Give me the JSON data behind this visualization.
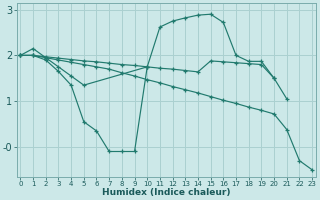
{
  "line_color": "#217a6e",
  "bg_color": "#cce8e8",
  "grid_color": "#aad0d0",
  "xlabel": "Humidex (Indice chaleur)",
  "xlim": [
    -0.3,
    23.3
  ],
  "ylim": [
    -0.65,
    3.15
  ],
  "yticks": [
    0.0,
    1.0,
    2.0,
    3.0
  ],
  "ytick_labels": [
    "-0",
    "1",
    "2",
    "3"
  ],
  "xticks": [
    0,
    1,
    2,
    3,
    4,
    5,
    6,
    7,
    8,
    9,
    10,
    11,
    12,
    13,
    14,
    15,
    16,
    17,
    18,
    19,
    20,
    21,
    22,
    23
  ],
  "lines": [
    {
      "x": [
        0,
        1,
        2,
        3,
        4,
        5,
        10,
        11,
        12,
        13,
        14,
        15,
        16,
        17,
        18,
        19,
        20,
        21
      ],
      "y": [
        2.0,
        2.15,
        1.95,
        1.75,
        1.55,
        1.35,
        1.75,
        2.62,
        2.75,
        2.82,
        2.88,
        2.9,
        2.72,
        2.0,
        1.87,
        1.87,
        1.5,
        1.05
      ]
    },
    {
      "x": [
        0,
        1,
        2,
        3,
        4,
        5,
        6,
        7,
        8,
        9,
        10
      ],
      "y": [
        2.0,
        2.0,
        1.9,
        1.65,
        1.35,
        0.55,
        0.35,
        -0.1,
        -0.1,
        -0.1,
        1.75
      ]
    },
    {
      "x": [
        0,
        1,
        2,
        3,
        4,
        5,
        6,
        7,
        8,
        9,
        10,
        11,
        12,
        13,
        14,
        15,
        16,
        17,
        18,
        19,
        20
      ],
      "y": [
        2.0,
        2.0,
        1.97,
        1.94,
        1.91,
        1.88,
        1.86,
        1.83,
        1.8,
        1.78,
        1.75,
        1.72,
        1.7,
        1.67,
        1.64,
        1.88,
        1.86,
        1.84,
        1.82,
        1.8,
        1.5
      ]
    },
    {
      "x": [
        0,
        1,
        2,
        3,
        4,
        5,
        6,
        7,
        8,
        9,
        10,
        11,
        12,
        13,
        14,
        15,
        16,
        17,
        18,
        19,
        20,
        21,
        22,
        23
      ],
      "y": [
        2.0,
        2.0,
        1.95,
        1.9,
        1.85,
        1.8,
        1.75,
        1.7,
        1.62,
        1.55,
        1.47,
        1.4,
        1.32,
        1.25,
        1.18,
        1.1,
        1.02,
        0.95,
        0.87,
        0.8,
        0.72,
        0.38,
        -0.3,
        -0.5
      ]
    }
  ]
}
